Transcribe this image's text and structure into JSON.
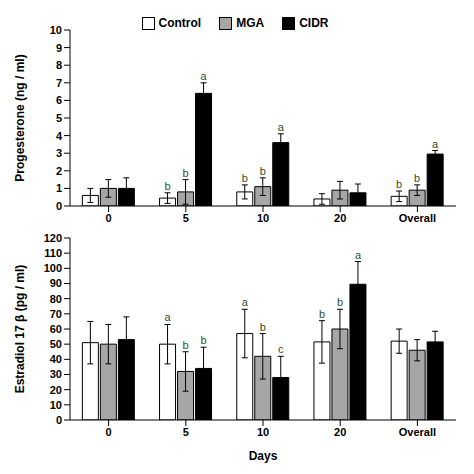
{
  "chart_data": [
    {
      "type": "bar",
      "y_label": "Progesterone (ng / ml)",
      "legend": "top",
      "categories": [
        "0",
        "5",
        "10",
        "20",
        "Overall"
      ],
      "ylim": [
        0,
        10
      ],
      "yticks": [
        0,
        1,
        2,
        3,
        4,
        5,
        6,
        7,
        8,
        9,
        10
      ],
      "series": [
        {
          "name": "Control",
          "color": "#ffffff",
          "values": [
            0.6,
            0.45,
            0.8,
            0.4,
            0.55
          ],
          "errors": [
            0.4,
            0.3,
            0.4,
            0.3,
            0.3
          ],
          "letters": [
            null,
            "b",
            "b",
            null,
            "b"
          ]
        },
        {
          "name": "MGA",
          "color": "#a6a6a6",
          "values": [
            1.0,
            0.8,
            1.1,
            0.9,
            0.9
          ],
          "errors": [
            0.5,
            0.7,
            0.5,
            0.5,
            0.3
          ],
          "letters": [
            null,
            "b",
            "b",
            null,
            "b"
          ]
        },
        {
          "name": "CIDR",
          "color": "#000000",
          "values": [
            1.0,
            6.4,
            3.6,
            0.75,
            2.95
          ],
          "errors": [
            0.6,
            0.6,
            0.5,
            0.5,
            0.2
          ],
          "letters": [
            null,
            "a",
            "a",
            null,
            "a"
          ]
        }
      ]
    },
    {
      "type": "bar",
      "y_label": "Estradiol 17 β (pg / ml)",
      "x_label": "Days",
      "categories": [
        "0",
        "5",
        "10",
        "20",
        "Overall"
      ],
      "ylim": [
        0,
        120
      ],
      "yticks": [
        0,
        10,
        20,
        30,
        40,
        50,
        60,
        70,
        80,
        90,
        100,
        110,
        120
      ],
      "series": [
        {
          "name": "Control",
          "color": "#ffffff",
          "values": [
            51,
            50,
            57,
            51.5,
            52
          ],
          "errors": [
            14,
            13,
            16,
            14,
            8
          ],
          "letters": [
            null,
            "a",
            "a",
            "b",
            null
          ]
        },
        {
          "name": "MGA",
          "color": "#a6a6a6",
          "values": [
            50,
            32,
            42,
            60,
            46
          ],
          "errors": [
            13,
            13,
            15,
            13,
            7
          ],
          "letters": [
            null,
            "b",
            "b",
            "b",
            null
          ]
        },
        {
          "name": "CIDR",
          "color": "#000000",
          "values": [
            53,
            34,
            28,
            89.5,
            51.5
          ],
          "errors": [
            15,
            14,
            14,
            15,
            7
          ],
          "letters": [
            null,
            "b",
            "c",
            "a",
            null
          ]
        }
      ]
    }
  ]
}
